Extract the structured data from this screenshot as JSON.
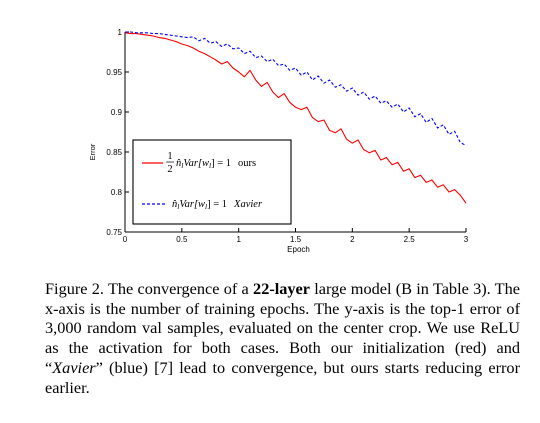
{
  "chart_data": {
    "type": "line",
    "title": "",
    "xlabel": "Epoch",
    "ylabel": "Error",
    "xlim": [
      0,
      3
    ],
    "ylim": [
      0.75,
      1.0
    ],
    "x_ticks": [
      "0",
      "0.5",
      "1",
      "1.5",
      "2",
      "2.5",
      "3"
    ],
    "y_ticks": [
      "0.75",
      "0.8",
      "0.85",
      "0.9",
      "0.95",
      "1"
    ],
    "x_tick_values": [
      0,
      0.5,
      1,
      1.5,
      2,
      2.5,
      3
    ],
    "y_tick_values": [
      0.75,
      0.8,
      0.85,
      0.9,
      0.95,
      1.0
    ],
    "grid": false,
    "legend_placement": "bottom-left",
    "series": [
      {
        "name": "1/2 n̂_l Var[w_l] = 1   ours",
        "color": "#ff0000",
        "style": "solid",
        "x": [
          0,
          0.05,
          0.1,
          0.15,
          0.2,
          0.25,
          0.3,
          0.35,
          0.4,
          0.45,
          0.5,
          0.55,
          0.6,
          0.65,
          0.7,
          0.75,
          0.8,
          0.85,
          0.9,
          0.95,
          1.0,
          1.05,
          1.1,
          1.15,
          1.2,
          1.25,
          1.3,
          1.35,
          1.4,
          1.45,
          1.5,
          1.55,
          1.6,
          1.65,
          1.7,
          1.75,
          1.8,
          1.85,
          1.9,
          1.95,
          2.0,
          2.05,
          2.1,
          2.15,
          2.2,
          2.25,
          2.3,
          2.35,
          2.4,
          2.45,
          2.5,
          2.55,
          2.6,
          2.65,
          2.7,
          2.75,
          2.8,
          2.85,
          2.9,
          2.95,
          3.0
        ],
        "values": [
          0.999,
          0.998,
          0.998,
          0.997,
          0.996,
          0.995,
          0.993,
          0.992,
          0.99,
          0.988,
          0.985,
          0.983,
          0.98,
          0.976,
          0.973,
          0.969,
          0.965,
          0.96,
          0.963,
          0.955,
          0.95,
          0.944,
          0.952,
          0.94,
          0.932,
          0.937,
          0.925,
          0.918,
          0.923,
          0.912,
          0.906,
          0.903,
          0.906,
          0.893,
          0.888,
          0.89,
          0.877,
          0.874,
          0.879,
          0.866,
          0.861,
          0.865,
          0.853,
          0.849,
          0.852,
          0.84,
          0.843,
          0.834,
          0.837,
          0.826,
          0.829,
          0.818,
          0.821,
          0.812,
          0.815,
          0.806,
          0.809,
          0.8,
          0.803,
          0.796,
          0.786
        ]
      },
      {
        "name": "n̂_l Var[w_l] = 1   Xavier",
        "color": "#0000ff",
        "style": "dashed",
        "x": [
          0,
          0.05,
          0.1,
          0.15,
          0.2,
          0.25,
          0.3,
          0.35,
          0.4,
          0.45,
          0.5,
          0.55,
          0.6,
          0.65,
          0.7,
          0.75,
          0.8,
          0.85,
          0.9,
          0.95,
          1.0,
          1.05,
          1.1,
          1.15,
          1.2,
          1.25,
          1.3,
          1.35,
          1.4,
          1.45,
          1.5,
          1.55,
          1.6,
          1.65,
          1.7,
          1.75,
          1.8,
          1.85,
          1.9,
          1.95,
          2.0,
          2.05,
          2.1,
          2.15,
          2.2,
          2.25,
          2.3,
          2.35,
          2.4,
          2.45,
          2.5,
          2.55,
          2.6,
          2.65,
          2.7,
          2.75,
          2.8,
          2.85,
          2.9,
          2.95,
          3.0
        ],
        "values": [
          1.0,
          1.0,
          0.999,
          0.999,
          0.999,
          0.998,
          0.998,
          0.997,
          0.996,
          0.995,
          0.994,
          0.993,
          0.994,
          0.989,
          0.992,
          0.986,
          0.988,
          0.982,
          0.985,
          0.979,
          0.98,
          0.973,
          0.976,
          0.968,
          0.97,
          0.963,
          0.966,
          0.958,
          0.96,
          0.952,
          0.955,
          0.946,
          0.95,
          0.94,
          0.945,
          0.936,
          0.94,
          0.931,
          0.934,
          0.926,
          0.93,
          0.921,
          0.925,
          0.916,
          0.92,
          0.911,
          0.914,
          0.906,
          0.91,
          0.9,
          0.905,
          0.894,
          0.898,
          0.887,
          0.892,
          0.88,
          0.884,
          0.872,
          0.876,
          0.862,
          0.858
        ]
      }
    ]
  },
  "legend": {
    "ours": {
      "frac_num": "1",
      "frac_den": "2",
      "expr_n": "n̂",
      "expr_sub": "l",
      "expr_var": "Var",
      "expr_w": "[w",
      "expr_w_sub": "l",
      "expr_end": "] = 1",
      "tag": "ours"
    },
    "xavier": {
      "expr_n": "n̂",
      "expr_sub": "l",
      "expr_var": "Var",
      "expr_w": "[w",
      "expr_w_sub": "l",
      "expr_end": "] = 1",
      "tag": "Xavier"
    }
  },
  "caption": {
    "lead": "Figure 2. The convergence of a ",
    "bold": "22-layer",
    "mid1": " large model (B in Table 3). The x-axis is the number of training epochs. The y-axis is the top-1 error of 3,000 random val samples, evaluated on the center crop. We use ReLU as the activation for both cases. Both our initialization (red) and “",
    "italic": "Xavier",
    "mid2": "” (blue) [7] lead to convergence, but ours starts reducing error earlier."
  }
}
